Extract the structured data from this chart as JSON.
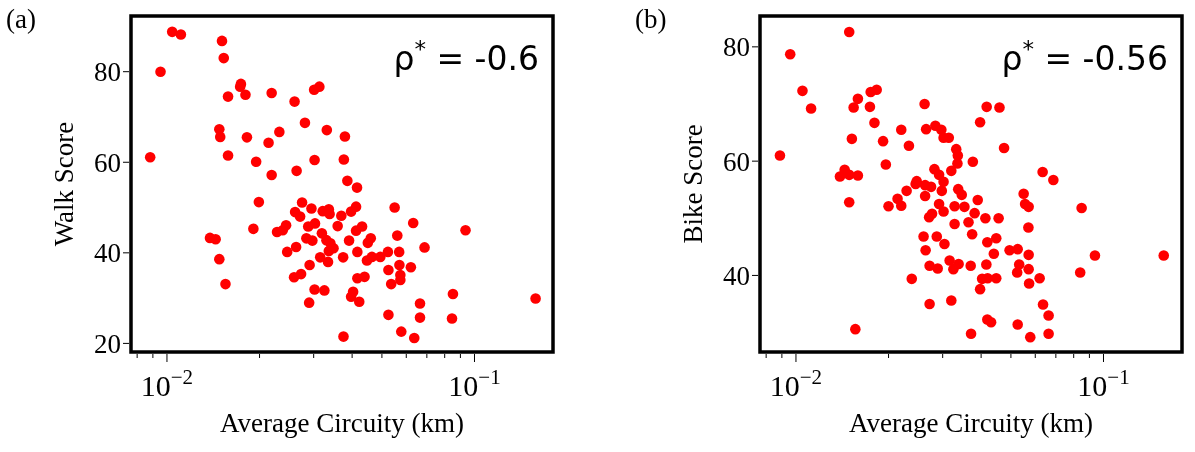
{
  "chart_data": [
    {
      "type": "scatter",
      "title": "(a)",
      "xlabel": "Average Circuity (km)",
      "ylabel": "Walk Score",
      "log": "x",
      "grid": false,
      "marker": "circle",
      "annotations": [
        "ρ$^{*}$ = -0.6"
      ],
      "xlim": [
        0.00764,
        0.18
      ],
      "ylim": [
        18.1,
        92.3
      ],
      "xticks": [
        {
          "value": 0.008,
          "label": null
        },
        {
          "value": 0.009,
          "label": null
        },
        {
          "value": 0.01,
          "label": "10$^{−2}$"
        },
        {
          "value": 0.02,
          "label": null
        },
        {
          "value": 0.03,
          "label": null
        },
        {
          "value": 0.04,
          "label": null
        },
        {
          "value": 0.05,
          "label": null
        },
        {
          "value": 0.06,
          "label": null
        },
        {
          "value": 0.07,
          "label": null
        },
        {
          "value": 0.08,
          "label": null
        },
        {
          "value": 0.09,
          "label": null
        },
        {
          "value": 0.1,
          "label": "10$^{−1}$"
        }
      ],
      "yticks": [
        20,
        40,
        60,
        80
      ],
      "series": [
        {
          "color": "#ff0000",
          "x": [
            0.0104,
            0.0111,
            0.00953,
            0.0151,
            0.0153,
            0.00882,
            0.0174,
            0.0173,
            0.018,
            0.0158,
            0.0219,
            0.026,
            0.0301,
            0.0313,
            0.0281,
            0.0331,
            0.0148,
            0.0149,
            0.0182,
            0.0232,
            0.0214,
            0.0158,
            0.0195,
            0.0302,
            0.0219,
            0.0264,
            0.0199,
            0.0275,
            0.0261,
            0.0271,
            0.0295,
            0.0321,
            0.0336,
            0.0338,
            0.0191,
            0.0228,
            0.0238,
            0.0244,
            0.0288,
            0.0303,
            0.0319,
            0.0284,
            0.0297,
            0.033,
            0.034,
            0.0348,
            0.0336,
            0.0263,
            0.0246,
            0.0359,
            0.0138,
            0.0144,
            0.0148,
            0.0155,
            0.0291,
            0.0315,
            0.0334,
            0.0259,
            0.0273,
            0.0302,
            0.0325,
            0.029,
            0.0375,
            0.0379,
            0.0376,
            0.0386,
            0.0415,
            0.0369,
            0.0412,
            0.0397,
            0.0412,
            0.0431,
            0.0391,
            0.0374,
            0.0416,
            0.045,
            0.046,
            0.0447,
            0.0464,
            0.0494,
            0.0523,
            0.055,
            0.0561,
            0.0632,
            0.0688,
            0.0569,
            0.0525,
            0.057,
            0.0621,
            0.0416,
            0.0439,
            0.0574,
            0.0574,
            0.0536,
            0.0403,
            0.0397,
            0.0422,
            0.0851,
            0.0665,
            0.0525,
            0.0665,
            0.0845,
            0.0935,
            0.158,
            0.0578,
            0.0637
          ],
          "values": [
            88.8,
            88.2,
            80,
            86.8,
            83,
            61.1,
            77.3,
            76.7,
            74.9,
            74.5,
            75.3,
            73.4,
            76,
            76.7,
            68.7,
            67.1,
            67.3,
            65.6,
            65.5,
            66.7,
            64.3,
            61.5,
            60.1,
            60.5,
            57.2,
            58.1,
            51.2,
            51.1,
            49,
            48,
            49.8,
            49.2,
            49.6,
            48.6,
            45.3,
            44.6,
            45,
            46.1,
            45.8,
            46.5,
            44.3,
            43.2,
            42.7,
            42.8,
            42.1,
            41,
            40.4,
            41.3,
            40.2,
            45.9,
            43.3,
            43,
            38.6,
            33.1,
            37.3,
            39,
            38,
            34.6,
            35.3,
            31.9,
            31.7,
            29,
            21.5,
            65.7,
            60.6,
            55.9,
            54.4,
            48.2,
            50.2,
            49.1,
            44.9,
            45.8,
            42.7,
            39,
            40.2,
            42.2,
            43.2,
            38.3,
            39.1,
            39.1,
            40.2,
            50,
            43.8,
            46.6,
            41.2,
            40.2,
            36.2,
            37.3,
            36.8,
            34.4,
            34.7,
            35.1,
            34,
            33.1,
            31.4,
            30.3,
            29.2,
            30.9,
            28.8,
            26.3,
            25.7,
            25.5,
            45,
            29.9,
            22.6,
            21.2
          ]
        }
      ]
    },
    {
      "type": "scatter",
      "title": "(b)",
      "xlabel": "Average Circuity (km)",
      "ylabel": "Bike Score",
      "log": "x",
      "grid": false,
      "marker": "circle",
      "annotations": [
        "ρ$^{*}$ = -0.56"
      ],
      "xlim": [
        0.00764,
        0.18
      ],
      "ylim": [
        26.6,
        85.4
      ],
      "xticks": [
        {
          "value": 0.008,
          "label": null
        },
        {
          "value": 0.009,
          "label": null
        },
        {
          "value": 0.01,
          "label": "10$^{−2}$"
        },
        {
          "value": 0.02,
          "label": null
        },
        {
          "value": 0.03,
          "label": null
        },
        {
          "value": 0.04,
          "label": null
        },
        {
          "value": 0.05,
          "label": null
        },
        {
          "value": 0.06,
          "label": null
        },
        {
          "value": 0.07,
          "label": null
        },
        {
          "value": 0.08,
          "label": null
        },
        {
          "value": 0.09,
          "label": null
        },
        {
          "value": 0.1,
          "label": "10$^{−1}$"
        }
      ],
      "yticks": [
        40,
        60,
        80
      ],
      "series": [
        {
          "color": "#ff0000",
          "x": [
            0.0149,
            0.00958,
            0.0105,
            0.0112,
            0.00887,
            0.0159,
            0.0154,
            0.0175,
            0.0183,
            0.0174,
            0.018,
            0.0152,
            0.0192,
            0.022,
            0.0233,
            0.0262,
            0.0265,
            0.0284,
            0.0196,
            0.0139,
            0.0144,
            0.0149,
            0.0159,
            0.0149,
            0.02,
            0.0214,
            0.022,
            0.0229,
            0.0245,
            0.0247,
            0.0263,
            0.0275,
            0.0263,
            0.0282,
            0.0271,
            0.0277,
            0.026,
            0.0264,
            0.0287,
            0.0272,
            0.0289,
            0.0238,
            0.0272,
            0.0156,
            0.0417,
            0.0459,
            0.0397,
            0.0475,
            0.0376,
            0.0634,
            0.0687,
            0.0297,
            0.0302,
            0.0314,
            0.0332,
            0.0336,
            0.0335,
            0.032,
            0.0292,
            0.0302,
            0.0298,
            0.0337,
            0.0346,
            0.039,
            0.0328,
            0.0353,
            0.0381,
            0.0292,
            0.0302,
            0.0328,
            0.0364,
            0.0413,
            0.0456,
            0.0374,
            0.0304,
            0.0419,
            0.0448,
            0.044,
            0.055,
            0.0556,
            0.0571,
            0.057,
            0.0495,
            0.0526,
            0.0571,
            0.0849,
            0.0938,
            0.157,
            0.084,
            0.0316,
            0.0325,
            0.0338,
            0.037,
            0.0416,
            0.0403,
            0.0397,
            0.042,
            0.0448,
            0.0524,
            0.0532,
            0.0571,
            0.0573,
            0.062,
            0.032,
            0.0419,
            0.0431,
            0.0371,
            0.0526,
            0.0578,
            0.0636,
            0.0663,
            0.0663
          ],
          "values": [
            82.6,
            78.7,
            72.3,
            69.2,
            61,
            70.9,
            69.4,
            72.1,
            72.5,
            69.5,
            66.7,
            63.9,
            63.5,
            65.5,
            62.7,
            70,
            65.6,
            66.2,
            59.4,
            57.3,
            58.5,
            57.6,
            57.5,
            52.8,
            52.1,
            53.4,
            52.2,
            54.8,
            56,
            56.5,
            55.8,
            55.5,
            53.9,
            58.6,
            50.2,
            50.8,
            46.8,
            44.4,
            46.8,
            41.7,
            41.2,
            39.4,
            35,
            30.6,
            69.5,
            69.4,
            66.8,
            62.3,
            59.9,
            58.1,
            56.7,
            65.5,
            64.1,
            64.1,
            62.1,
            61,
            59.6,
            58.3,
            57.6,
            56.4,
            54.8,
            55.1,
            54.1,
            53.2,
            52.1,
            52,
            50.9,
            52.5,
            51.2,
            49,
            49.3,
            50,
            50,
            47.2,
            45.5,
            45.8,
            46.5,
            43.8,
            54.3,
            52.5,
            52,
            48.4,
            44.4,
            44.6,
            43.6,
            51.8,
            43.5,
            43.5,
            40.5,
            42.6,
            41.1,
            42,
            41.7,
            41.9,
            39.4,
            37.6,
            39.5,
            39.5,
            40.5,
            41.9,
            41.1,
            38.6,
            39.5,
            35.6,
            32.3,
            31.8,
            29.8,
            31.4,
            29.2,
            34.9,
            33,
            29.8
          ]
        }
      ]
    }
  ]
}
